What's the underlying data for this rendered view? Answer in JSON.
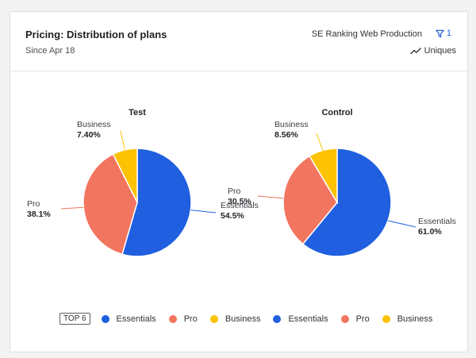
{
  "header": {
    "title": "Pricing: Distribution of plans",
    "subtitle": "Since Apr 18",
    "project": "SE Ranking Web Production",
    "filter_count": "1",
    "metric": "Uniques"
  },
  "legend": {
    "badge": "TOP 6",
    "items": [
      "Essentials",
      "Pro",
      "Business",
      "Essentials",
      "Pro",
      "Business"
    ]
  },
  "colors": {
    "essentials": "#1f5fe0",
    "pro": "#f2755f",
    "business": "#fcc203"
  },
  "chart_data": [
    {
      "type": "pie",
      "title": "Test",
      "categories": [
        "Essentials",
        "Pro",
        "Business"
      ],
      "values": [
        54.5,
        38.1,
        7.4
      ],
      "labels": [
        "54.5%",
        "38.1%",
        "7.40%"
      ]
    },
    {
      "type": "pie",
      "title": "Control",
      "categories": [
        "Essentials",
        "Pro",
        "Business"
      ],
      "values": [
        61.0,
        30.5,
        8.56
      ],
      "labels": [
        "61.0%",
        "30.5%",
        "8.56%"
      ]
    }
  ]
}
